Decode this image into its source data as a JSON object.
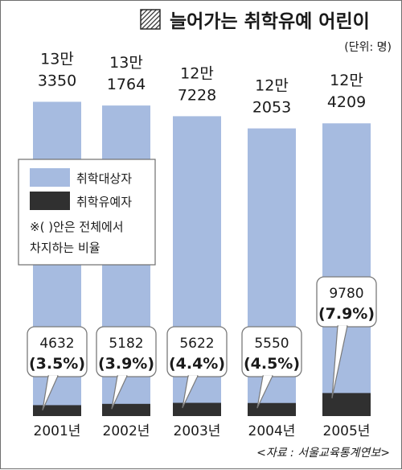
{
  "chart_data": {
    "type": "bar",
    "title": "늘어가는 취학유예 어린이",
    "unit": "(단위: 명)",
    "source": "<자료 : 서울교육통계연보>",
    "categories": [
      "2001년",
      "2002년",
      "2003년",
      "2004년",
      "2005년"
    ],
    "series": [
      {
        "name": "취학대상자",
        "values": [
          133350,
          131764,
          127228,
          122053,
          124209
        ],
        "color": "#a6bbe0"
      },
      {
        "name": "취학유예자",
        "values": [
          4632,
          5182,
          5622,
          5550,
          9780
        ],
        "color": "#303030"
      }
    ],
    "total_labels": [
      {
        "line1": "13만",
        "line2": "3350"
      },
      {
        "line1": "13만",
        "line2": "1764"
      },
      {
        "line1": "12만",
        "line2": "7228"
      },
      {
        "line1": "12만",
        "line2": "2053"
      },
      {
        "line1": "12만",
        "line2": "4209"
      }
    ],
    "deferred_labels": [
      {
        "count": "4632",
        "percent": "(3.5%)"
      },
      {
        "count": "5182",
        "percent": "(3.9%)"
      },
      {
        "count": "5622",
        "percent": "(4.4%)"
      },
      {
        "count": "5550",
        "percent": "(4.5%)"
      },
      {
        "count": "9780",
        "percent": "(7.9%)"
      }
    ],
    "percent_values": [
      3.5,
      3.9,
      4.4,
      4.5,
      7.9
    ],
    "legend": {
      "note_line1": "※( )안은 전체에서",
      "note_line2": "차지하는 비율"
    },
    "ylim": [
      0,
      140000
    ]
  }
}
